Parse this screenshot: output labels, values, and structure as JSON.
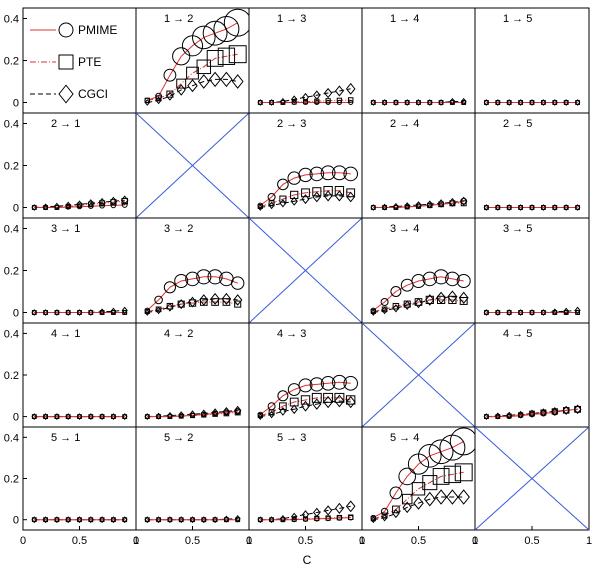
{
  "chart_data": {
    "type": "scatter",
    "layout": "5x5 panel matrix, diagonal panels crossed out",
    "x": [
      0.1,
      0.2,
      0.3,
      0.4,
      0.5,
      0.6,
      0.7,
      0.8,
      0.9
    ],
    "xlabel": "C",
    "xlim": [
      0,
      1
    ],
    "ylim": [
      -0.05,
      0.45
    ],
    "xticks": [
      0,
      0.5,
      1
    ],
    "xtick_labels": [
      "0",
      "0.5",
      "1"
    ],
    "yticks": [
      0,
      0.2,
      0.4
    ],
    "ytick_labels": [
      "0",
      "0.2",
      "0.4"
    ],
    "legend_position": "top-left",
    "colors": {
      "PMIME": "#e03030",
      "PTE": "#e03030",
      "CGCI": "#000000",
      "diagonal_cross": "#3a5bd9"
    },
    "panels": [
      {
        "row": 1,
        "col": 1,
        "label": "",
        "empty": true
      },
      {
        "row": 1,
        "col": 2,
        "label": "1 → 2",
        "PMIME": [
          0.01,
          0.03,
          0.13,
          0.22,
          0.27,
          0.31,
          0.33,
          0.35,
          0.38
        ],
        "PTE": [
          0.01,
          0.02,
          0.04,
          0.09,
          0.14,
          0.17,
          0.21,
          0.22,
          0.23
        ],
        "CGCI": [
          0.0,
          0.01,
          0.03,
          0.06,
          0.08,
          0.1,
          0.11,
          0.11,
          0.1
        ]
      },
      {
        "row": 1,
        "col": 3,
        "label": "1 → 3",
        "PMIME": [
          0,
          0,
          0,
          0,
          0,
          0,
          0,
          0,
          0
        ],
        "PTE": [
          0,
          0,
          0,
          0.002,
          0.004,
          0.006,
          0.008,
          0.01,
          0.012
        ],
        "CGCI": [
          0,
          0,
          0.005,
          0.015,
          0.025,
          0.035,
          0.045,
          0.055,
          0.065
        ]
      },
      {
        "row": 1,
        "col": 4,
        "label": "1 → 4",
        "PMIME": [
          0,
          0,
          0,
          0,
          0,
          0,
          0,
          0,
          0
        ],
        "PTE": [
          0,
          0,
          0,
          0,
          0,
          0,
          0,
          0,
          0
        ],
        "CGCI": [
          0,
          0,
          0,
          0,
          0,
          0,
          0,
          0.005,
          0.005
        ]
      },
      {
        "row": 1,
        "col": 5,
        "label": "1 → 5",
        "PMIME": [
          0,
          0,
          0,
          0,
          0,
          0,
          0,
          0,
          0
        ],
        "PTE": [
          0,
          0,
          0,
          0,
          0,
          0,
          0,
          0,
          0
        ],
        "CGCI": [
          0,
          0,
          0,
          0,
          0,
          0,
          0,
          0,
          0
        ]
      },
      {
        "row": 2,
        "col": 1,
        "label": "2 → 1",
        "PMIME": [
          0,
          0,
          0,
          0.002,
          0.004,
          0.006,
          0.008,
          0.01,
          0.012
        ],
        "PTE": [
          0,
          0,
          0,
          0.005,
          0.01,
          0.015,
          0.02,
          0.025,
          0.03
        ],
        "CGCI": [
          0,
          0.003,
          0.006,
          0.01,
          0.015,
          0.02,
          0.025,
          0.03,
          0.035
        ]
      },
      {
        "row": 2,
        "col": 2,
        "label": "",
        "diagonal": true
      },
      {
        "row": 2,
        "col": 3,
        "label": "2 → 3",
        "PMIME": [
          0.01,
          0.05,
          0.11,
          0.14,
          0.155,
          0.16,
          0.165,
          0.165,
          0.16
        ],
        "PTE": [
          0.005,
          0.02,
          0.04,
          0.06,
          0.07,
          0.075,
          0.08,
          0.08,
          0.07
        ],
        "CGCI": [
          0,
          0.01,
          0.02,
          0.03,
          0.04,
          0.05,
          0.055,
          0.055,
          0.05
        ]
      },
      {
        "row": 2,
        "col": 4,
        "label": "2 → 4",
        "PMIME": [
          0,
          0,
          0,
          0.003,
          0.006,
          0.01,
          0.015,
          0.02,
          0.03
        ],
        "PTE": [
          0,
          0,
          0,
          0.003,
          0.006,
          0.01,
          0.015,
          0.02,
          0.02
        ],
        "CGCI": [
          0,
          0.002,
          0.005,
          0.008,
          0.012,
          0.015,
          0.02,
          0.025,
          0.03
        ]
      },
      {
        "row": 2,
        "col": 5,
        "label": "2 → 5",
        "PMIME": [
          0,
          0,
          0,
          0,
          0,
          0,
          0,
          0,
          0
        ],
        "PTE": [
          0,
          0,
          0,
          0,
          0,
          0,
          0,
          0,
          0
        ],
        "CGCI": [
          0,
          0,
          0,
          0,
          0,
          0,
          0,
          0,
          0
        ]
      },
      {
        "row": 3,
        "col": 1,
        "label": "3 → 1",
        "PMIME": [
          0,
          0,
          0,
          0,
          0,
          0,
          0,
          0,
          0
        ],
        "PTE": [
          0,
          0,
          0,
          0,
          0,
          0,
          0,
          0,
          0
        ],
        "CGCI": [
          0,
          0,
          0,
          0,
          0,
          0,
          0.003,
          0.006,
          0.01
        ]
      },
      {
        "row": 3,
        "col": 2,
        "label": "3 → 2",
        "PMIME": [
          0.01,
          0.06,
          0.12,
          0.15,
          0.16,
          0.17,
          0.17,
          0.16,
          0.14
        ],
        "PTE": [
          0.005,
          0.015,
          0.03,
          0.04,
          0.045,
          0.05,
          0.05,
          0.05,
          0.04
        ],
        "CGCI": [
          0,
          0.01,
          0.025,
          0.04,
          0.05,
          0.06,
          0.065,
          0.065,
          0.06
        ]
      },
      {
        "row": 3,
        "col": 3,
        "label": "",
        "diagonal": true
      },
      {
        "row": 3,
        "col": 4,
        "label": "3 → 4",
        "PMIME": [
          0.01,
          0.05,
          0.1,
          0.13,
          0.15,
          0.16,
          0.17,
          0.16,
          0.15
        ],
        "PTE": [
          0.005,
          0.015,
          0.03,
          0.04,
          0.05,
          0.06,
          0.06,
          0.06,
          0.055
        ],
        "CGCI": [
          0,
          0.01,
          0.02,
          0.035,
          0.045,
          0.06,
          0.07,
          0.075,
          0.07
        ]
      },
      {
        "row": 3,
        "col": 5,
        "label": "3 → 5",
        "PMIME": [
          0,
          0,
          0,
          0,
          0,
          0,
          0,
          0,
          0
        ],
        "PTE": [
          0,
          0,
          0,
          0,
          0,
          0,
          0,
          0,
          0
        ],
        "CGCI": [
          0,
          0,
          0,
          0,
          0,
          0,
          0.003,
          0.006,
          0.01
        ]
      },
      {
        "row": 4,
        "col": 1,
        "label": "4 → 1",
        "PMIME": [
          0,
          0,
          0,
          0,
          0,
          0,
          0,
          0,
          0
        ],
        "PTE": [
          0,
          0,
          0,
          0,
          0,
          0,
          0,
          0,
          0
        ],
        "CGCI": [
          0,
          0,
          0,
          0,
          0,
          0,
          0,
          0,
          0
        ]
      },
      {
        "row": 4,
        "col": 2,
        "label": "4 → 2",
        "PMIME": [
          0,
          0,
          0,
          0.003,
          0.006,
          0.01,
          0.015,
          0.02,
          0.025
        ],
        "PTE": [
          0,
          0,
          0,
          0.002,
          0.005,
          0.008,
          0.012,
          0.015,
          0.02
        ],
        "CGCI": [
          0,
          0.002,
          0.005,
          0.008,
          0.012,
          0.015,
          0.02,
          0.025,
          0.03
        ]
      },
      {
        "row": 4,
        "col": 3,
        "label": "4 → 3",
        "PMIME": [
          0.01,
          0.05,
          0.1,
          0.13,
          0.15,
          0.155,
          0.16,
          0.165,
          0.16
        ],
        "PTE": [
          0.005,
          0.02,
          0.05,
          0.07,
          0.08,
          0.09,
          0.09,
          0.09,
          0.08
        ],
        "CGCI": [
          0,
          0.01,
          0.025,
          0.035,
          0.05,
          0.06,
          0.07,
          0.075,
          0.07
        ]
      },
      {
        "row": 4,
        "col": 4,
        "label": "",
        "diagonal": true
      },
      {
        "row": 4,
        "col": 5,
        "label": "4 → 5",
        "PMIME": [
          0,
          0,
          0,
          0.005,
          0.01,
          0.015,
          0.02,
          0.03,
          0.035
        ],
        "PTE": [
          0,
          0,
          0.003,
          0.008,
          0.015,
          0.02,
          0.025,
          0.03,
          0.035
        ],
        "CGCI": [
          0,
          0.003,
          0.006,
          0.01,
          0.015,
          0.02,
          0.025,
          0.03,
          0.035
        ]
      },
      {
        "row": 5,
        "col": 1,
        "label": "5 → 1",
        "PMIME": [
          0,
          0,
          0,
          0,
          0,
          0,
          0,
          0,
          0
        ],
        "PTE": [
          0,
          0,
          0,
          0,
          0,
          0,
          0,
          0,
          0
        ],
        "CGCI": [
          0,
          0,
          0,
          0,
          0,
          0,
          0,
          0,
          0
        ]
      },
      {
        "row": 5,
        "col": 2,
        "label": "5 → 2",
        "PMIME": [
          0,
          0,
          0,
          0,
          0,
          0,
          0,
          0,
          0
        ],
        "PTE": [
          0,
          0,
          0,
          0,
          0,
          0,
          0,
          0,
          0
        ],
        "CGCI": [
          0,
          0,
          0,
          0,
          0,
          0,
          0,
          0.003,
          0.005
        ]
      },
      {
        "row": 5,
        "col": 3,
        "label": "5 → 3",
        "PMIME": [
          0,
          0,
          0,
          0,
          0.002,
          0.004,
          0.006,
          0.008,
          0.01
        ],
        "PTE": [
          0,
          0,
          0,
          0.002,
          0.004,
          0.006,
          0.008,
          0.01,
          0.012
        ],
        "CGCI": [
          0,
          0,
          0.005,
          0.015,
          0.025,
          0.035,
          0.045,
          0.055,
          0.065
        ]
      },
      {
        "row": 5,
        "col": 4,
        "label": "5 → 4",
        "PMIME": [
          0.01,
          0.04,
          0.13,
          0.21,
          0.27,
          0.31,
          0.33,
          0.35,
          0.38
        ],
        "PTE": [
          0.005,
          0.02,
          0.05,
          0.1,
          0.15,
          0.18,
          0.21,
          0.22,
          0.23
        ],
        "CGCI": [
          0,
          0.01,
          0.03,
          0.06,
          0.08,
          0.1,
          0.11,
          0.11,
          0.11
        ]
      },
      {
        "row": 5,
        "col": 5,
        "label": "",
        "diagonal": true
      }
    ],
    "series": [
      {
        "name": "PMIME",
        "marker": "circle",
        "line": "solid"
      },
      {
        "name": "PTE",
        "marker": "square",
        "line": "dash-dot"
      },
      {
        "name": "CGCI",
        "marker": "diamond",
        "line": "dashed"
      }
    ]
  }
}
